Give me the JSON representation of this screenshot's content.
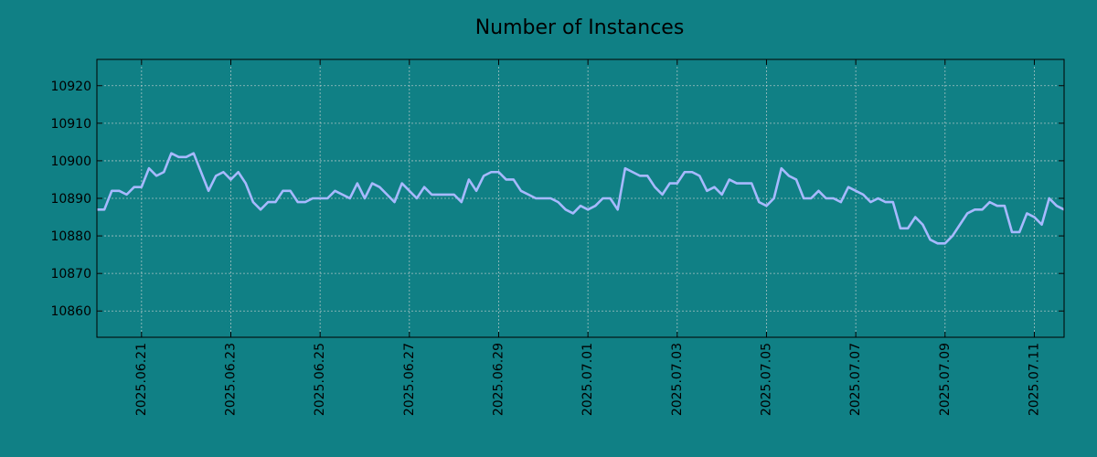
{
  "chart_data": {
    "type": "line",
    "title": "Number of Instances",
    "xlabel": "",
    "ylabel": "",
    "x_start": "2025-06-20",
    "x_step_hours": 4,
    "xlim": [
      "2025-06-20",
      "2025-07-11 16:00"
    ],
    "ylim": [
      10853,
      10927
    ],
    "yticks": [
      10860,
      10870,
      10880,
      10890,
      10900,
      10910,
      10920
    ],
    "xticks": [
      "2025.06.21",
      "2025.06.23",
      "2025.06.25",
      "2025.06.27",
      "2025.06.29",
      "2025.07.01",
      "2025.07.03",
      "2025.07.05",
      "2025.07.07",
      "2025.07.09",
      "2025.07.11"
    ],
    "grid": true,
    "background": "#108085",
    "line_color": "#a7b9ff",
    "series": [
      {
        "values": [
          10887,
          10887,
          10892,
          10892,
          10891,
          10893,
          10893,
          10898,
          10896,
          10897,
          10902,
          10901,
          10901,
          10902,
          10897,
          10892,
          10896,
          10897,
          10895,
          10897,
          10894,
          10889,
          10887,
          10889,
          10889,
          10892,
          10892,
          10889,
          10889,
          10890,
          10890,
          10890,
          10892,
          10891,
          10890,
          10894,
          10890,
          10894,
          10893,
          10891,
          10889,
          10894,
          10892,
          10890,
          10893,
          10891,
          10891,
          10891,
          10891,
          10889,
          10895,
          10892,
          10896,
          10897,
          10897,
          10895,
          10895,
          10892,
          10891,
          10890,
          10890,
          10890,
          10889,
          10887,
          10886,
          10888,
          10887,
          10888,
          10890,
          10890,
          10887,
          10898,
          10897,
          10896,
          10896,
          10893,
          10891,
          10894,
          10894,
          10897,
          10897,
          10896,
          10892,
          10893,
          10891,
          10895,
          10894,
          10894,
          10894,
          10889,
          10888,
          10890,
          10898,
          10896,
          10895,
          10890,
          10890,
          10892,
          10890,
          10890,
          10889,
          10893,
          10892,
          10891,
          10889,
          10890,
          10889,
          10889,
          10882,
          10882,
          10885,
          10883,
          10879,
          10878,
          10878,
          10880,
          10883,
          10886,
          10887,
          10887,
          10889,
          10888,
          10888,
          10881,
          10881,
          10886,
          10885,
          10883,
          10890,
          10888,
          10887
        ]
      }
    ]
  }
}
